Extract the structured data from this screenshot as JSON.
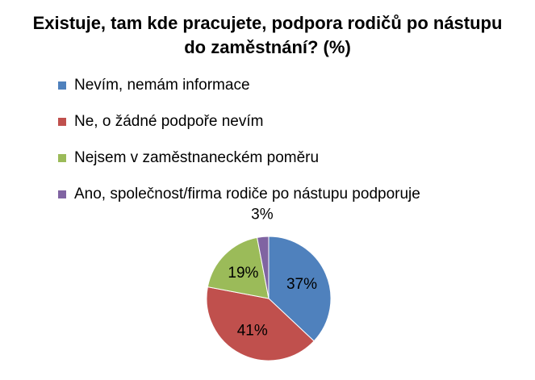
{
  "chart_data": {
    "type": "pie",
    "title_lines": [
      "Existuje, tam kde pracujete, podpora rodičů po nástupu",
      "do zaměstnání? (%)"
    ],
    "categories": [
      "Nevím, nemám informace",
      "Ne, o žádné podpoře nevím",
      "Nejsem v zaměstnaneckém poměru",
      "Ano, společnost/firma rodiče po nástupu podporuje"
    ],
    "values": [
      37,
      41,
      19,
      3
    ],
    "data_labels": [
      "37%",
      "41%",
      "19%",
      "3%"
    ],
    "colors": [
      "#4F81BD",
      "#C0504D",
      "#9BBB59",
      "#8064A2"
    ],
    "legend_position": "top"
  }
}
